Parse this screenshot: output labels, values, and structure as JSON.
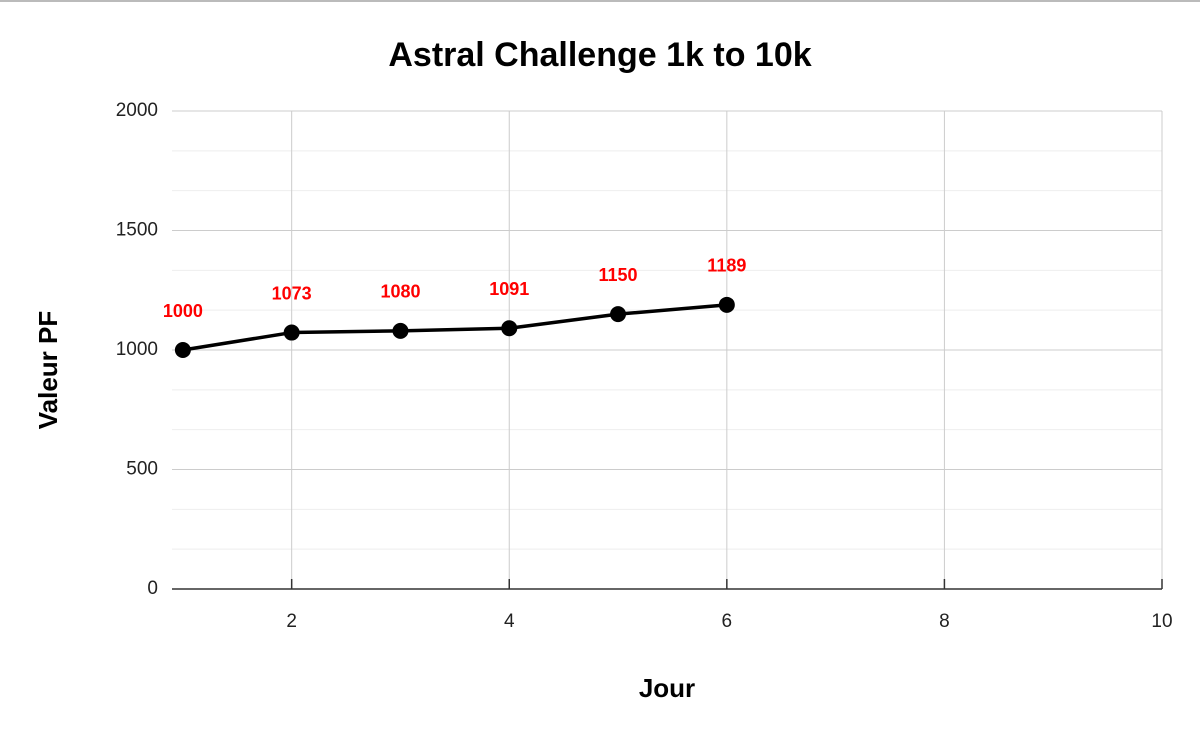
{
  "chart_data": {
    "type": "line",
    "title": "Astral Challenge 1k to 10k",
    "x_label": "Jour",
    "y_label": "Valeur PF",
    "x": [
      1,
      2,
      3,
      4,
      5,
      6
    ],
    "series": [
      {
        "name": "Valeur PF",
        "color": "#000000",
        "values": [
          1000,
          1073,
          1080,
          1091,
          1150,
          1189
        ]
      }
    ],
    "data_label_color": "#ff0000",
    "xlim": [
      0.9,
      10
    ],
    "ylim": [
      0,
      2000
    ],
    "xticks": [
      2,
      4,
      6,
      8,
      10
    ],
    "yticks": [
      0,
      500,
      1000,
      1500,
      2000
    ],
    "grid": true
  }
}
